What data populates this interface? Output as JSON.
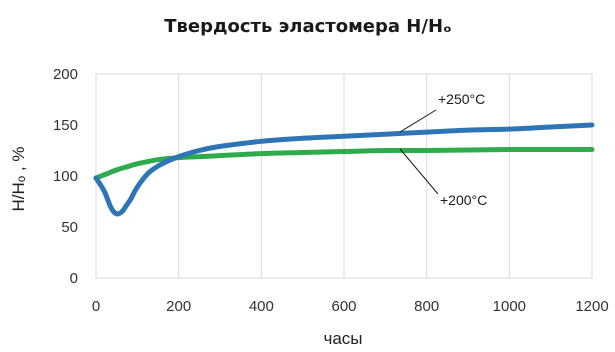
{
  "chart_data": {
    "type": "line",
    "title": "Твердость эластомера H/Hₒ",
    "xlabel": "часы",
    "ylabel": "H/Hₒ , %",
    "xlim": [
      0,
      1200
    ],
    "ylim": [
      0,
      200
    ],
    "xticks": [
      0,
      200,
      400,
      600,
      800,
      1000,
      1200
    ],
    "yticks": [
      0,
      50,
      100,
      150,
      200
    ],
    "grid": "vertical",
    "series": [
      {
        "name": "+250°C",
        "color": "#2e75b6",
        "x": [
          0,
          20,
          35,
          45,
          55,
          65,
          75,
          85,
          95,
          110,
          130,
          160,
          200,
          250,
          300,
          400,
          500,
          600,
          700,
          800,
          900,
          1000,
          1100,
          1200
        ],
        "y": [
          98,
          85,
          70,
          64,
          63,
          66,
          72,
          78,
          86,
          95,
          104,
          112,
          119,
          125,
          129,
          134,
          137,
          139,
          141,
          143,
          145,
          146,
          148,
          150
        ]
      },
      {
        "name": "+200°C",
        "color": "#2eab4a",
        "x": [
          0,
          25,
          50,
          75,
          100,
          150,
          200,
          250,
          300,
          400,
          500,
          600,
          700,
          800,
          900,
          1000,
          1100,
          1200
        ],
        "y": [
          98,
          102,
          106,
          109,
          112,
          116,
          118,
          119,
          120,
          122,
          123,
          124,
          125,
          125,
          125.5,
          126,
          126,
          126
        ]
      }
    ],
    "annotations": [
      {
        "text": "+250°C",
        "series": 0
      },
      {
        "text": "+200°C",
        "series": 1
      }
    ]
  }
}
